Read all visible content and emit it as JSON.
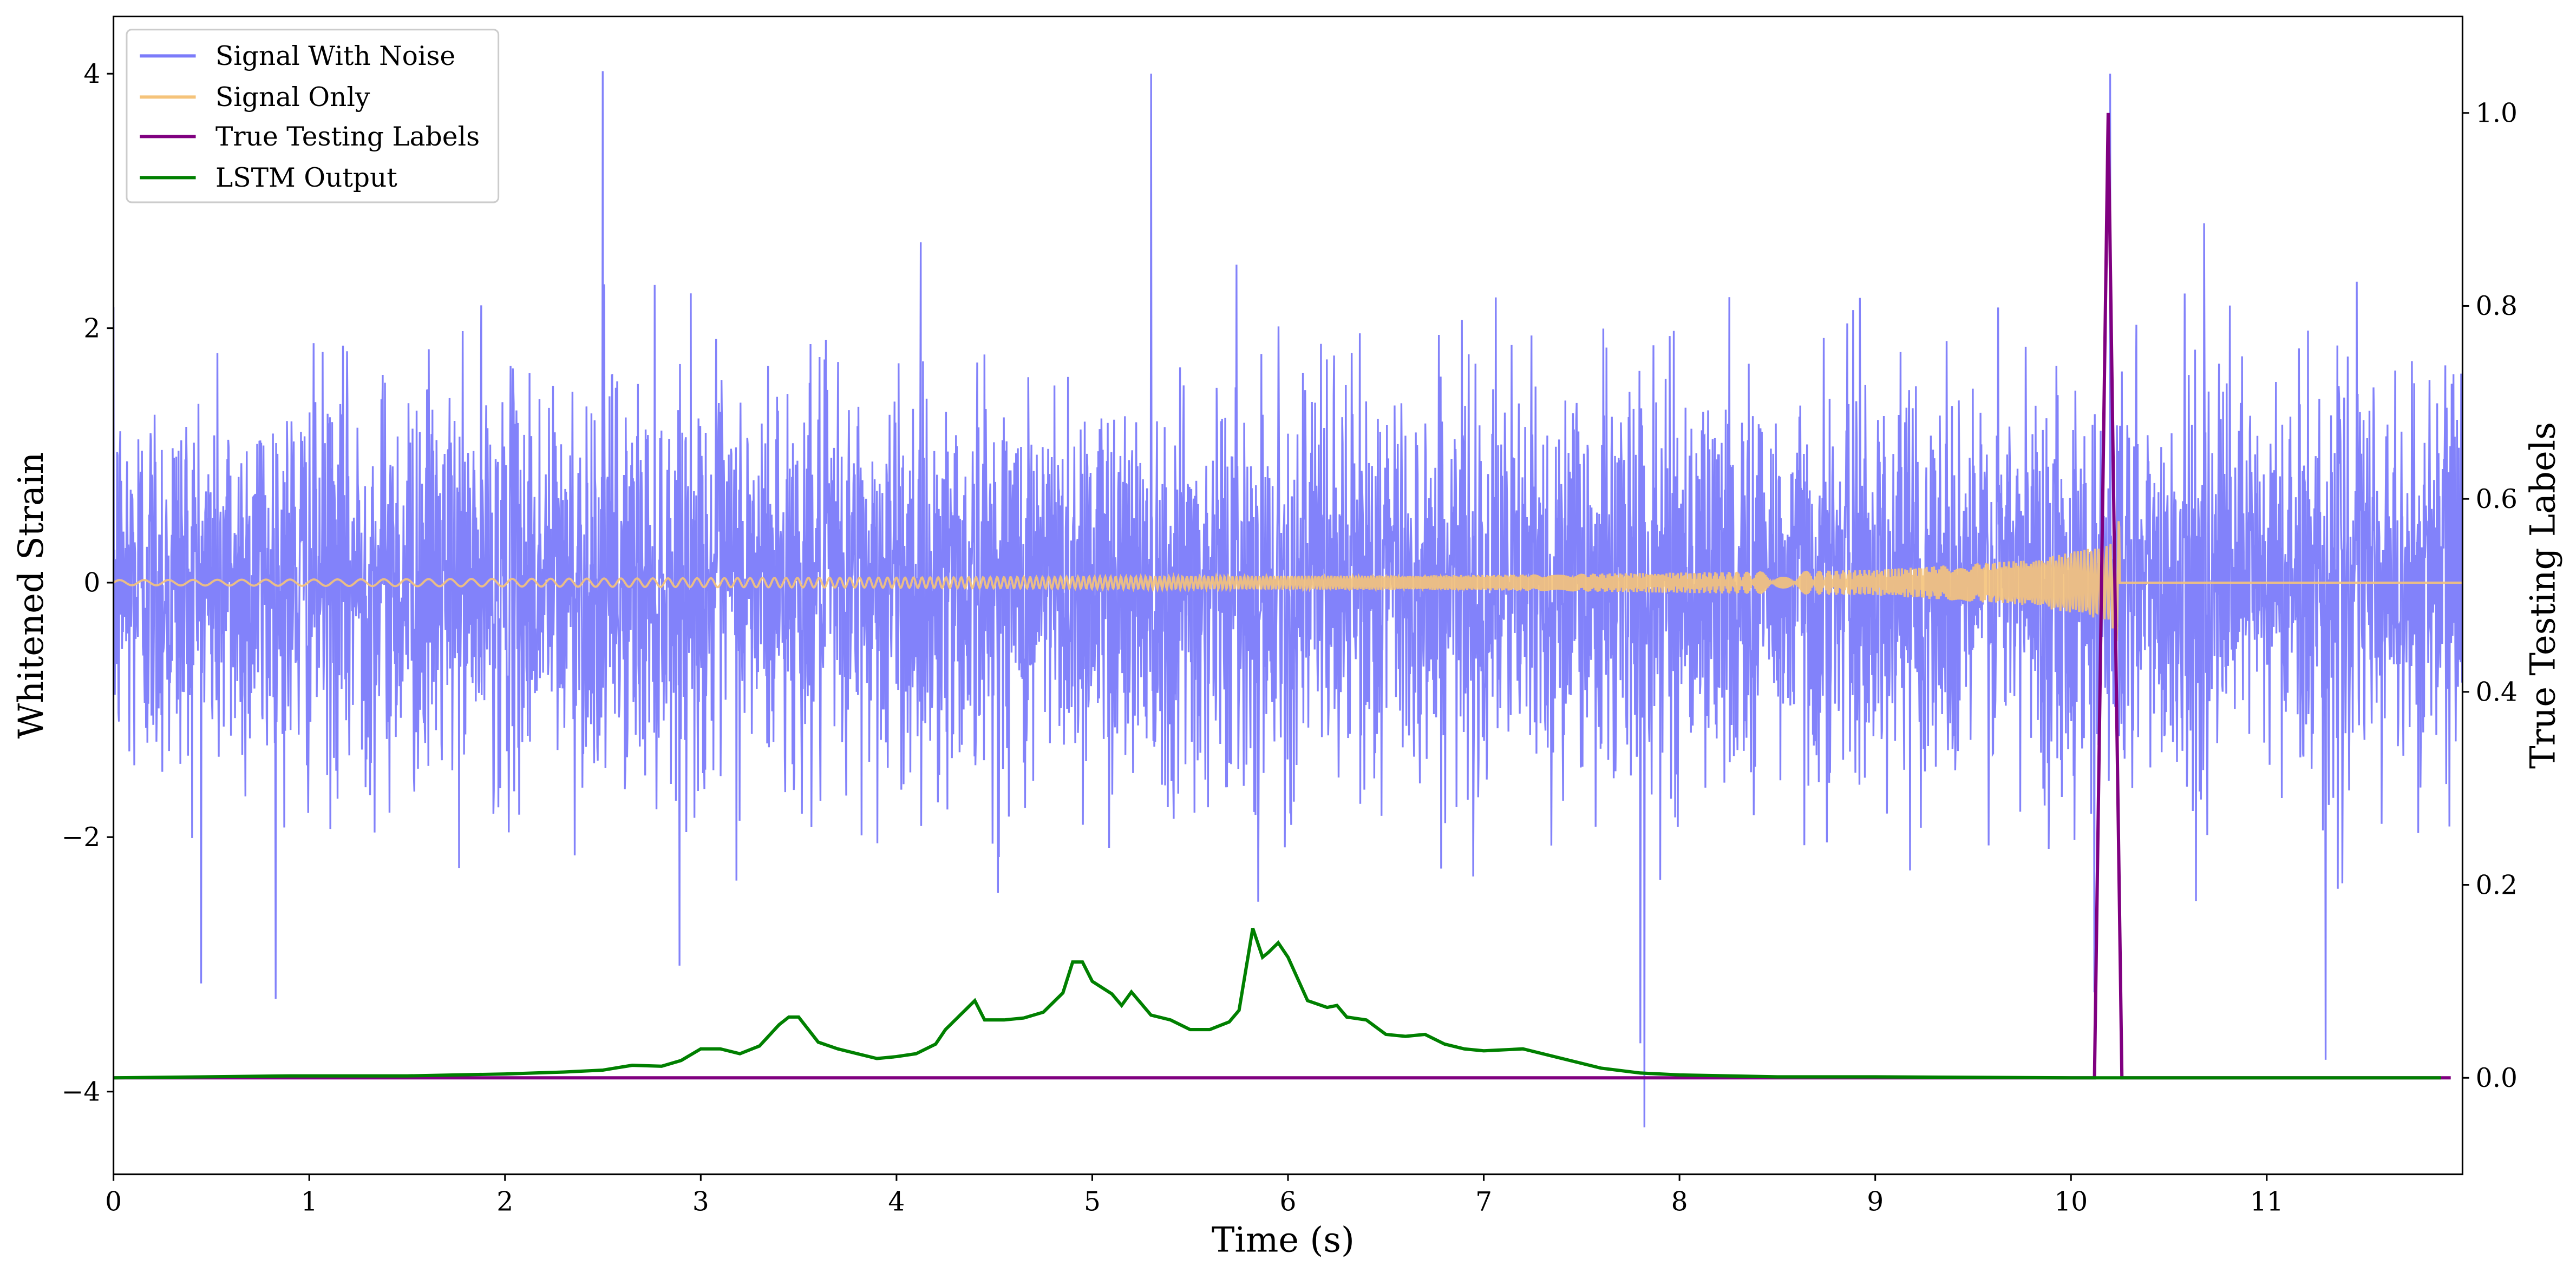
{
  "chart_data": {
    "type": "line",
    "xlabel": "Time (s)",
    "ylabel_left": "Whitened Strain",
    "ylabel_right": "True Testing Labels",
    "xlim": [
      0,
      12
    ],
    "ylim_left": [
      -4.65,
      4.45
    ],
    "ylim_right": [
      -0.1,
      1.1
    ],
    "x_ticks": [
      0,
      1,
      2,
      3,
      4,
      5,
      6,
      7,
      8,
      9,
      10,
      11
    ],
    "x_tick_labels": [
      "0",
      "1",
      "2",
      "3",
      "4",
      "5",
      "6",
      "7",
      "8",
      "9",
      "10",
      "11"
    ],
    "y_left_ticks": [
      4,
      2,
      0,
      -2,
      -4
    ],
    "y_left_tick_labels": [
      "4",
      "2",
      "0",
      "−2",
      "−4"
    ],
    "y_right_ticks": [
      1.0,
      0.8,
      0.6,
      0.4,
      0.2,
      0.0
    ],
    "y_right_tick_labels": [
      "1.0",
      "0.8",
      "0.6",
      "0.4",
      "0.2",
      "0.0"
    ],
    "grid": false,
    "legend_position": "top-left",
    "series": [
      {
        "name": "Signal With Noise",
        "axis": "left",
        "color": "#7b7bfa",
        "kind": "noise",
        "envelope_min": -4.3,
        "envelope_max": 4.05,
        "typical_range": [
          -1.4,
          1.4
        ],
        "notable_extremes": [
          [
            2.5,
            4.02
          ],
          [
            5.3,
            4.0
          ],
          [
            10.2,
            4.0
          ],
          [
            7.82,
            -4.28
          ],
          [
            7.8,
            -3.62
          ],
          [
            10.12,
            -3.22
          ],
          [
            11.3,
            -3.75
          ]
        ]
      },
      {
        "name": "Signal Only",
        "axis": "left",
        "color": "#f5c37a",
        "kind": "chirp",
        "start_amplitude": 0.02,
        "amplitude_points": [
          [
            0,
            0.02
          ],
          [
            4,
            0.04
          ],
          [
            7,
            0.06
          ],
          [
            9,
            0.1
          ],
          [
            9.8,
            0.18
          ],
          [
            10.2,
            0.3
          ],
          [
            10.25,
            0.55
          ]
        ],
        "merger_time": 10.25
      },
      {
        "name": "True Testing Labels",
        "axis": "right",
        "color": "#800080",
        "x": [
          0,
          10.12,
          10.19,
          10.26,
          11.94
        ],
        "y": [
          0,
          0,
          1.0,
          0,
          0
        ]
      },
      {
        "name": "LSTM Output",
        "axis": "right",
        "color": "#008000",
        "x": [
          0,
          0.9,
          1.5,
          2.0,
          2.3,
          2.5,
          2.65,
          2.8,
          2.9,
          3.0,
          3.1,
          3.2,
          3.3,
          3.4,
          3.45,
          3.5,
          3.6,
          3.7,
          3.8,
          3.9,
          4.0,
          4.1,
          4.2,
          4.25,
          4.3,
          4.35,
          4.4,
          4.45,
          4.55,
          4.65,
          4.75,
          4.85,
          4.9,
          4.95,
          5.0,
          5.1,
          5.15,
          5.2,
          5.3,
          5.4,
          5.5,
          5.6,
          5.7,
          5.75,
          5.82,
          5.87,
          5.9,
          5.95,
          6.0,
          6.1,
          6.2,
          6.25,
          6.3,
          6.4,
          6.5,
          6.6,
          6.7,
          6.8,
          6.9,
          7.0,
          7.2,
          7.4,
          7.6,
          7.8,
          8.0,
          8.5,
          9.0,
          10.0,
          11.89
        ],
        "y": [
          0,
          0.002,
          0.002,
          0.004,
          0.006,
          0.008,
          0.013,
          0.012,
          0.018,
          0.03,
          0.03,
          0.025,
          0.033,
          0.055,
          0.063,
          0.063,
          0.037,
          0.03,
          0.025,
          0.02,
          0.022,
          0.025,
          0.035,
          0.05,
          0.06,
          0.07,
          0.08,
          0.06,
          0.06,
          0.062,
          0.068,
          0.088,
          0.12,
          0.12,
          0.1,
          0.087,
          0.075,
          0.089,
          0.065,
          0.06,
          0.05,
          0.05,
          0.058,
          0.07,
          0.155,
          0.125,
          0.13,
          0.14,
          0.125,
          0.08,
          0.073,
          0.075,
          0.063,
          0.06,
          0.045,
          0.043,
          0.045,
          0.035,
          0.03,
          0.028,
          0.03,
          0.02,
          0.01,
          0.005,
          0.003,
          0.001,
          0.001,
          0.0,
          0.0
        ]
      }
    ]
  }
}
